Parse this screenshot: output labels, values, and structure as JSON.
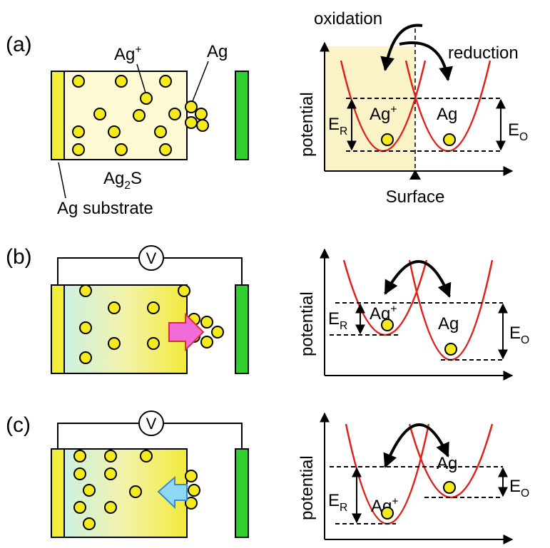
{
  "panels": [
    {
      "label": "(a)",
      "cell": {
        "ion": {
          "base": "Ag",
          "sup": "+"
        },
        "atom": "Ag",
        "film": {
          "base": "Ag",
          "sub": "2",
          "rest": "S"
        },
        "substrate": "Ag substrate"
      },
      "energy": {
        "oxidation": "oxidation",
        "reduction": "reduction",
        "y_axis": "potential",
        "er": {
          "base": "E",
          "sub": "R"
        },
        "ion": {
          "base": "Ag",
          "sup": "+"
        },
        "atom": "Ag",
        "eo": {
          "base": "E",
          "sub": "O"
        },
        "surface": "Surface"
      }
    },
    {
      "label": "(b)",
      "cell": {
        "voltmeter": "V"
      },
      "energy": {
        "y_axis": "potential",
        "er": {
          "base": "E",
          "sub": "R"
        },
        "ion": {
          "base": "Ag",
          "sup": "+"
        },
        "atom": "Ag",
        "eo": {
          "base": "E",
          "sub": "O"
        }
      }
    },
    {
      "label": "(c)",
      "cell": {
        "voltmeter": "V"
      },
      "energy": {
        "y_axis": "potential",
        "er": {
          "base": "E",
          "sub": "R"
        },
        "ion": {
          "base": "Ag",
          "sup": "+"
        },
        "atom": "Ag",
        "eo": {
          "base": "E",
          "sub": "O"
        }
      }
    }
  ]
}
